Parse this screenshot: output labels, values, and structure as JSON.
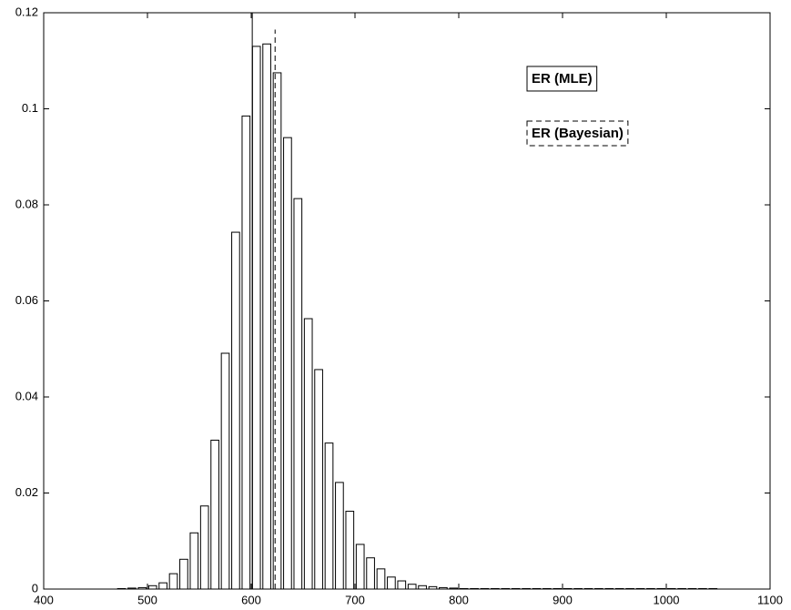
{
  "chart_data": {
    "type": "histogram",
    "bins": [
      470,
      480,
      490,
      500,
      510,
      520,
      530,
      540,
      550,
      560,
      570,
      580,
      590,
      600,
      610,
      620,
      630,
      640,
      650,
      660,
      670,
      680,
      690,
      700,
      710,
      720,
      730,
      740,
      750,
      760,
      770,
      780,
      790,
      800,
      810,
      820,
      830,
      840,
      850,
      860,
      870,
      880,
      890,
      900,
      910,
      920,
      930,
      940,
      950,
      960,
      970,
      980,
      990,
      1000,
      1010,
      1020,
      1030,
      1040,
      1050
    ],
    "values": [
      0.0001,
      0.0002,
      0.0003,
      0.0007,
      0.0013,
      0.0032,
      0.0062,
      0.0117,
      0.0173,
      0.031,
      0.0491,
      0.0743,
      0.0985,
      0.113,
      0.1135,
      0.1075,
      0.094,
      0.0813,
      0.0563,
      0.0457,
      0.0304,
      0.0222,
      0.0162,
      0.0093,
      0.0065,
      0.0042,
      0.0025,
      0.0017,
      0.001,
      0.0007,
      0.0005,
      0.0003,
      0.0002,
      0.0001,
      0.0001,
      0.0001,
      0.0001,
      0.0001,
      0.0001,
      0.0001,
      0.0001,
      0.0001,
      0.0001,
      0.0001,
      0.0001,
      0.0001,
      0.0001,
      0.0001,
      0.0001,
      0.0001,
      0.0001,
      0.0001,
      0.0001,
      0.0001,
      0.0001,
      0.0001,
      0.0001,
      0.0001
    ],
    "color": "#ffffff",
    "lines": [
      {
        "name": "ER (MLE)",
        "x": 601,
        "y_end": 0.12,
        "style": "solid"
      },
      {
        "name": "ER (Bayesian)",
        "x": 623,
        "y_end": 0.1165,
        "style": "dashed"
      }
    ],
    "xlim": [
      400,
      1100
    ],
    "xticks": [
      400,
      500,
      600,
      700,
      800,
      900,
      1000,
      1100
    ],
    "ylim": [
      0,
      0.12
    ],
    "yticks": [
      0,
      0.02,
      0.04,
      0.06,
      0.08,
      0.1,
      0.12
    ],
    "grid": false
  }
}
